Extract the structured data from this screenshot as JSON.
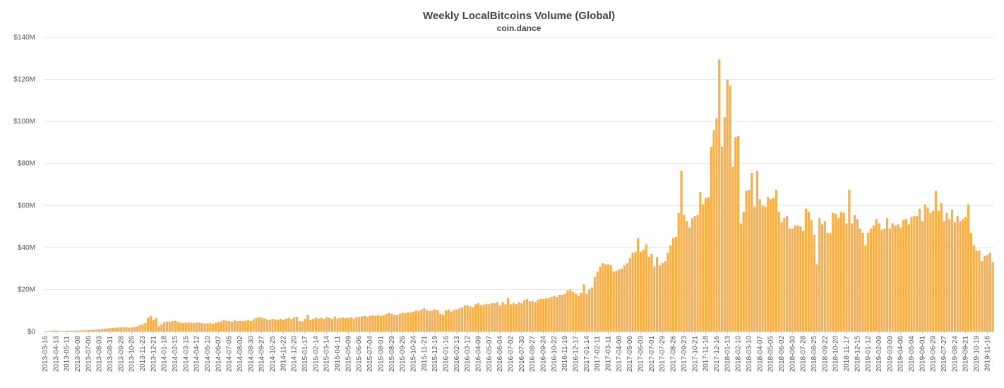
{
  "chart_data": {
    "type": "bar",
    "title": "Weekly LocalBitcoins Volume (Global)",
    "subtitle": "coin.dance",
    "color": "#f9a83a",
    "grid": true,
    "ylim": [
      0,
      140
    ],
    "yticks": [
      {
        "value": 0,
        "label": "$0"
      },
      {
        "value": 20,
        "label": "$20M"
      },
      {
        "value": 40,
        "label": "$40M"
      },
      {
        "value": 60,
        "label": "$60M"
      },
      {
        "value": 80,
        "label": "$80M"
      },
      {
        "value": 100,
        "label": "$100M"
      },
      {
        "value": 120,
        "label": "$120M"
      },
      {
        "value": 140,
        "label": "$140M"
      }
    ],
    "categories": [
      "2013-03-16",
      null,
      null,
      null,
      "2013-04-13",
      null,
      null,
      null,
      "2013-05-11",
      null,
      null,
      null,
      "2013-06-08",
      null,
      null,
      null,
      "2013-07-06",
      null,
      null,
      null,
      "2013-08-03",
      null,
      null,
      null,
      "2013-08-31",
      null,
      null,
      null,
      "2013-09-28",
      null,
      null,
      null,
      "2013-10-26",
      null,
      null,
      null,
      "2013-11-23",
      null,
      null,
      null,
      "2013-12-21",
      null,
      null,
      null,
      "2014-01-18",
      null,
      null,
      null,
      "2014-02-15",
      null,
      null,
      null,
      "2014-03-15",
      null,
      null,
      null,
      "2014-04-12",
      null,
      null,
      null,
      "2014-05-10",
      null,
      null,
      null,
      "2014-06-07",
      null,
      null,
      null,
      "2014-07-05",
      null,
      null,
      null,
      "2014-08-02",
      null,
      null,
      null,
      "2014-08-30",
      null,
      null,
      null,
      "2014-09-27",
      null,
      null,
      null,
      "2014-10-25",
      null,
      null,
      null,
      "2014-11-22",
      null,
      null,
      null,
      "2014-12-20",
      null,
      null,
      null,
      "2015-01-17",
      null,
      null,
      null,
      "2015-02-14",
      null,
      null,
      null,
      "2015-03-14",
      null,
      null,
      null,
      "2015-04-11",
      null,
      null,
      null,
      "2015-05-09",
      null,
      null,
      null,
      "2015-06-06",
      null,
      null,
      null,
      "2015-07-04",
      null,
      null,
      null,
      "2015-08-01",
      null,
      null,
      null,
      "2015-08-29",
      null,
      null,
      null,
      "2015-09-26",
      null,
      null,
      null,
      "2015-10-24",
      null,
      null,
      null,
      "2015-11-21",
      null,
      null,
      null,
      "2015-12-19",
      null,
      null,
      null,
      "2016-01-16",
      null,
      null,
      null,
      "2016-02-13",
      null,
      null,
      null,
      "2016-03-12",
      null,
      null,
      null,
      "2016-04-09",
      null,
      null,
      null,
      "2016-05-07",
      null,
      null,
      null,
      "2016-06-04",
      null,
      null,
      null,
      "2016-07-02",
      null,
      null,
      null,
      "2016-07-30",
      null,
      null,
      null,
      "2016-08-27",
      null,
      null,
      null,
      "2016-09-24",
      null,
      null,
      null,
      "2016-10-22",
      null,
      null,
      null,
      "2016-11-19",
      null,
      null,
      null,
      "2016-12-17",
      null,
      null,
      null,
      "2017-01-14",
      null,
      null,
      null,
      "2017-02-11",
      null,
      null,
      null,
      "2017-03-11",
      null,
      null,
      null,
      "2017-04-08",
      null,
      null,
      null,
      "2017-05-06",
      null,
      null,
      null,
      "2017-06-03",
      null,
      null,
      null,
      "2017-07-01",
      null,
      null,
      null,
      "2017-07-29",
      null,
      null,
      null,
      "2017-08-26",
      null,
      null,
      null,
      "2017-09-23",
      null,
      null,
      null,
      "2017-10-21",
      null,
      null,
      null,
      "2017-11-18",
      null,
      null,
      null,
      "2017-12-16",
      null,
      null,
      null,
      "2018-01-13",
      null,
      null,
      null,
      "2018-02-10",
      null,
      null,
      null,
      "2018-03-10",
      null,
      null,
      null,
      "2018-04-07",
      null,
      null,
      null,
      "2018-05-05",
      null,
      null,
      null,
      "2018-06-02",
      null,
      null,
      null,
      "2018-06-30",
      null,
      null,
      null,
      "2018-07-28",
      null,
      null,
      null,
      "2018-08-25",
      null,
      null,
      null,
      "2018-09-22",
      null,
      null,
      null,
      "2018-10-20",
      null,
      null,
      null,
      "2018-11-17",
      null,
      null,
      null,
      "2018-12-15",
      null,
      null,
      null,
      "2019-01-12",
      null,
      null,
      null,
      "2019-02-09",
      null,
      null,
      null,
      "2019-03-09",
      null,
      null,
      null,
      "2019-04-06",
      null,
      null,
      null,
      "2019-05-04",
      null,
      null,
      null,
      "2019-06-01",
      null,
      null,
      null,
      "2019-06-29",
      null,
      null,
      null,
      "2019-07-27",
      null,
      null,
      null,
      "2019-08-24",
      null,
      null,
      null,
      "2019-09-21",
      null,
      null,
      null,
      "2019-10-19",
      null,
      null,
      null,
      "2019-11-16",
      null,
      null
    ],
    "values": [
      0.2,
      0.3,
      0.4,
      0.5,
      0.5,
      0.4,
      0.3,
      0.3,
      0.4,
      0.4,
      0.4,
      0.5,
      0.5,
      0.5,
      0.6,
      0.6,
      0.7,
      0.8,
      0.9,
      1.0,
      1.1,
      1.2,
      1.4,
      1.5,
      1.6,
      1.7,
      1.8,
      1.9,
      2.0,
      2.1,
      2.0,
      1.8,
      2.0,
      2.2,
      2.5,
      3.0,
      3.5,
      4.0,
      6.5,
      7.5,
      5.5,
      6.5,
      2.5,
      3.5,
      4.5,
      4.8,
      4.6,
      5.0,
      5.2,
      4.8,
      4.2,
      4.0,
      4.3,
      4.2,
      4.2,
      4.0,
      4.2,
      4.3,
      4.0,
      3.8,
      3.9,
      4.0,
      3.8,
      4.2,
      4.5,
      4.8,
      5.5,
      5.2,
      5.0,
      4.6,
      5.3,
      5.0,
      5.1,
      5.0,
      5.2,
      5.5,
      5.0,
      5.8,
      6.5,
      6.8,
      6.6,
      6.2,
      5.8,
      5.5,
      6.0,
      5.8,
      5.5,
      6.0,
      5.6,
      6.2,
      6.5,
      6.0,
      6.8,
      7.0,
      5.0,
      4.8,
      6.0,
      8.0,
      5.5,
      6.0,
      6.5,
      6.2,
      6.5,
      6.0,
      6.8,
      6.5,
      6.0,
      7.2,
      6.2,
      6.5,
      6.6,
      6.4,
      6.5,
      6.8,
      6.2,
      7.0,
      7.0,
      7.2,
      7.5,
      7.0,
      7.5,
      7.8,
      7.5,
      7.8,
      7.5,
      7.8,
      8.5,
      8.8,
      8.5,
      8.0,
      7.8,
      8.5,
      9.0,
      8.8,
      9.2,
      9.0,
      9.5,
      10.0,
      9.8,
      10.5,
      11.0,
      10.2,
      9.8,
      10.0,
      10.5,
      10.2,
      8.5,
      8.0,
      10.0,
      10.5,
      9.5,
      10.2,
      10.5,
      11.0,
      11.5,
      12.5,
      12.5,
      12.0,
      11.5,
      13.0,
      13.5,
      12.5,
      12.8,
      13.2,
      13.0,
      13.5,
      13.5,
      14.0,
      12.5,
      14.0,
      13.0,
      16.0,
      13.0,
      13.5,
      13.0,
      14.0,
      13.5,
      15.0,
      15.5,
      14.5,
      14.5,
      14.0,
      15.0,
      15.5,
      15.5,
      15.8,
      16.0,
      16.5,
      17.0,
      16.5,
      17.5,
      17.5,
      18.0,
      19.5,
      20.0,
      19.0,
      18.0,
      17.0,
      18.5,
      22.5,
      18.0,
      20.0,
      21.0,
      26.0,
      28.5,
      31.0,
      32.5,
      32.0,
      32.0,
      31.5,
      28.5,
      29.0,
      29.5,
      30.0,
      31.5,
      32.5,
      35.0,
      37.5,
      38.0,
      44.5,
      38.0,
      39.0,
      41.5,
      35.5,
      37.0,
      31.0,
      35.5,
      31.5,
      32.5,
      33.5,
      37.5,
      41.0,
      44.5,
      45.0,
      56.5,
      76.5,
      55.5,
      52.5,
      49.5,
      54.0,
      55.0,
      55.5,
      66.5,
      60.5,
      63.5,
      64.0,
      88.0,
      96.0,
      101.5,
      129.5,
      88.0,
      102.0,
      120.0,
      117.0,
      78.5,
      92.5,
      93.0,
      51.5,
      57.0,
      67.0,
      67.5,
      75.5,
      59.5,
      76.5,
      63.0,
      60.0,
      59.5,
      64.0,
      63.0,
      63.5,
      67.5,
      57.0,
      52.0,
      54.0,
      55.0,
      49.0,
      49.0,
      50.5,
      50.5,
      50.0,
      48.0,
      58.5,
      57.0,
      53.0,
      46.0,
      32.0,
      54.0,
      51.0,
      52.5,
      47.0,
      47.0,
      56.5,
      56.0,
      54.0,
      57.0,
      56.5,
      51.5,
      67.5,
      51.5,
      55.5,
      53.5,
      49.0,
      47.0,
      41.0,
      47.0,
      49.0,
      50.5,
      53.5,
      51.5,
      48.5,
      49.0,
      54.0,
      49.0,
      51.5,
      50.5,
      51.0,
      49.5,
      53.0,
      53.5,
      51.0,
      54.5,
      55.0,
      55.0,
      58.5,
      52.5,
      60.5,
      59.0,
      56.5,
      57.5,
      67.0,
      57.5,
      61.0,
      52.5,
      56.5,
      53.5,
      58.0,
      52.0,
      55.0,
      52.5,
      53.5,
      54.5,
      60.5,
      47.0,
      41.0,
      38.5,
      38.5,
      33.5,
      36.0,
      36.5,
      37.5,
      33.0
    ]
  }
}
